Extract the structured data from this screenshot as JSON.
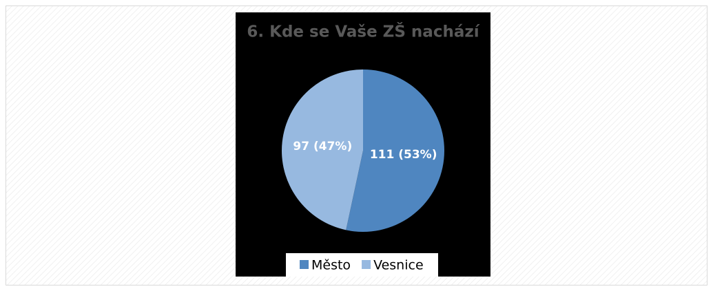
{
  "chart_data": {
    "type": "pie",
    "title": "6. Kde se Vaše ZŠ nachází",
    "categories": [
      "Město",
      "Vesnice"
    ],
    "values": [
      111,
      97
    ],
    "value_labels": [
      "111 (53%)",
      "97 (47%)"
    ],
    "colors": [
      "#4f86c0",
      "#97b9e0"
    ],
    "legend": "bottom"
  }
}
